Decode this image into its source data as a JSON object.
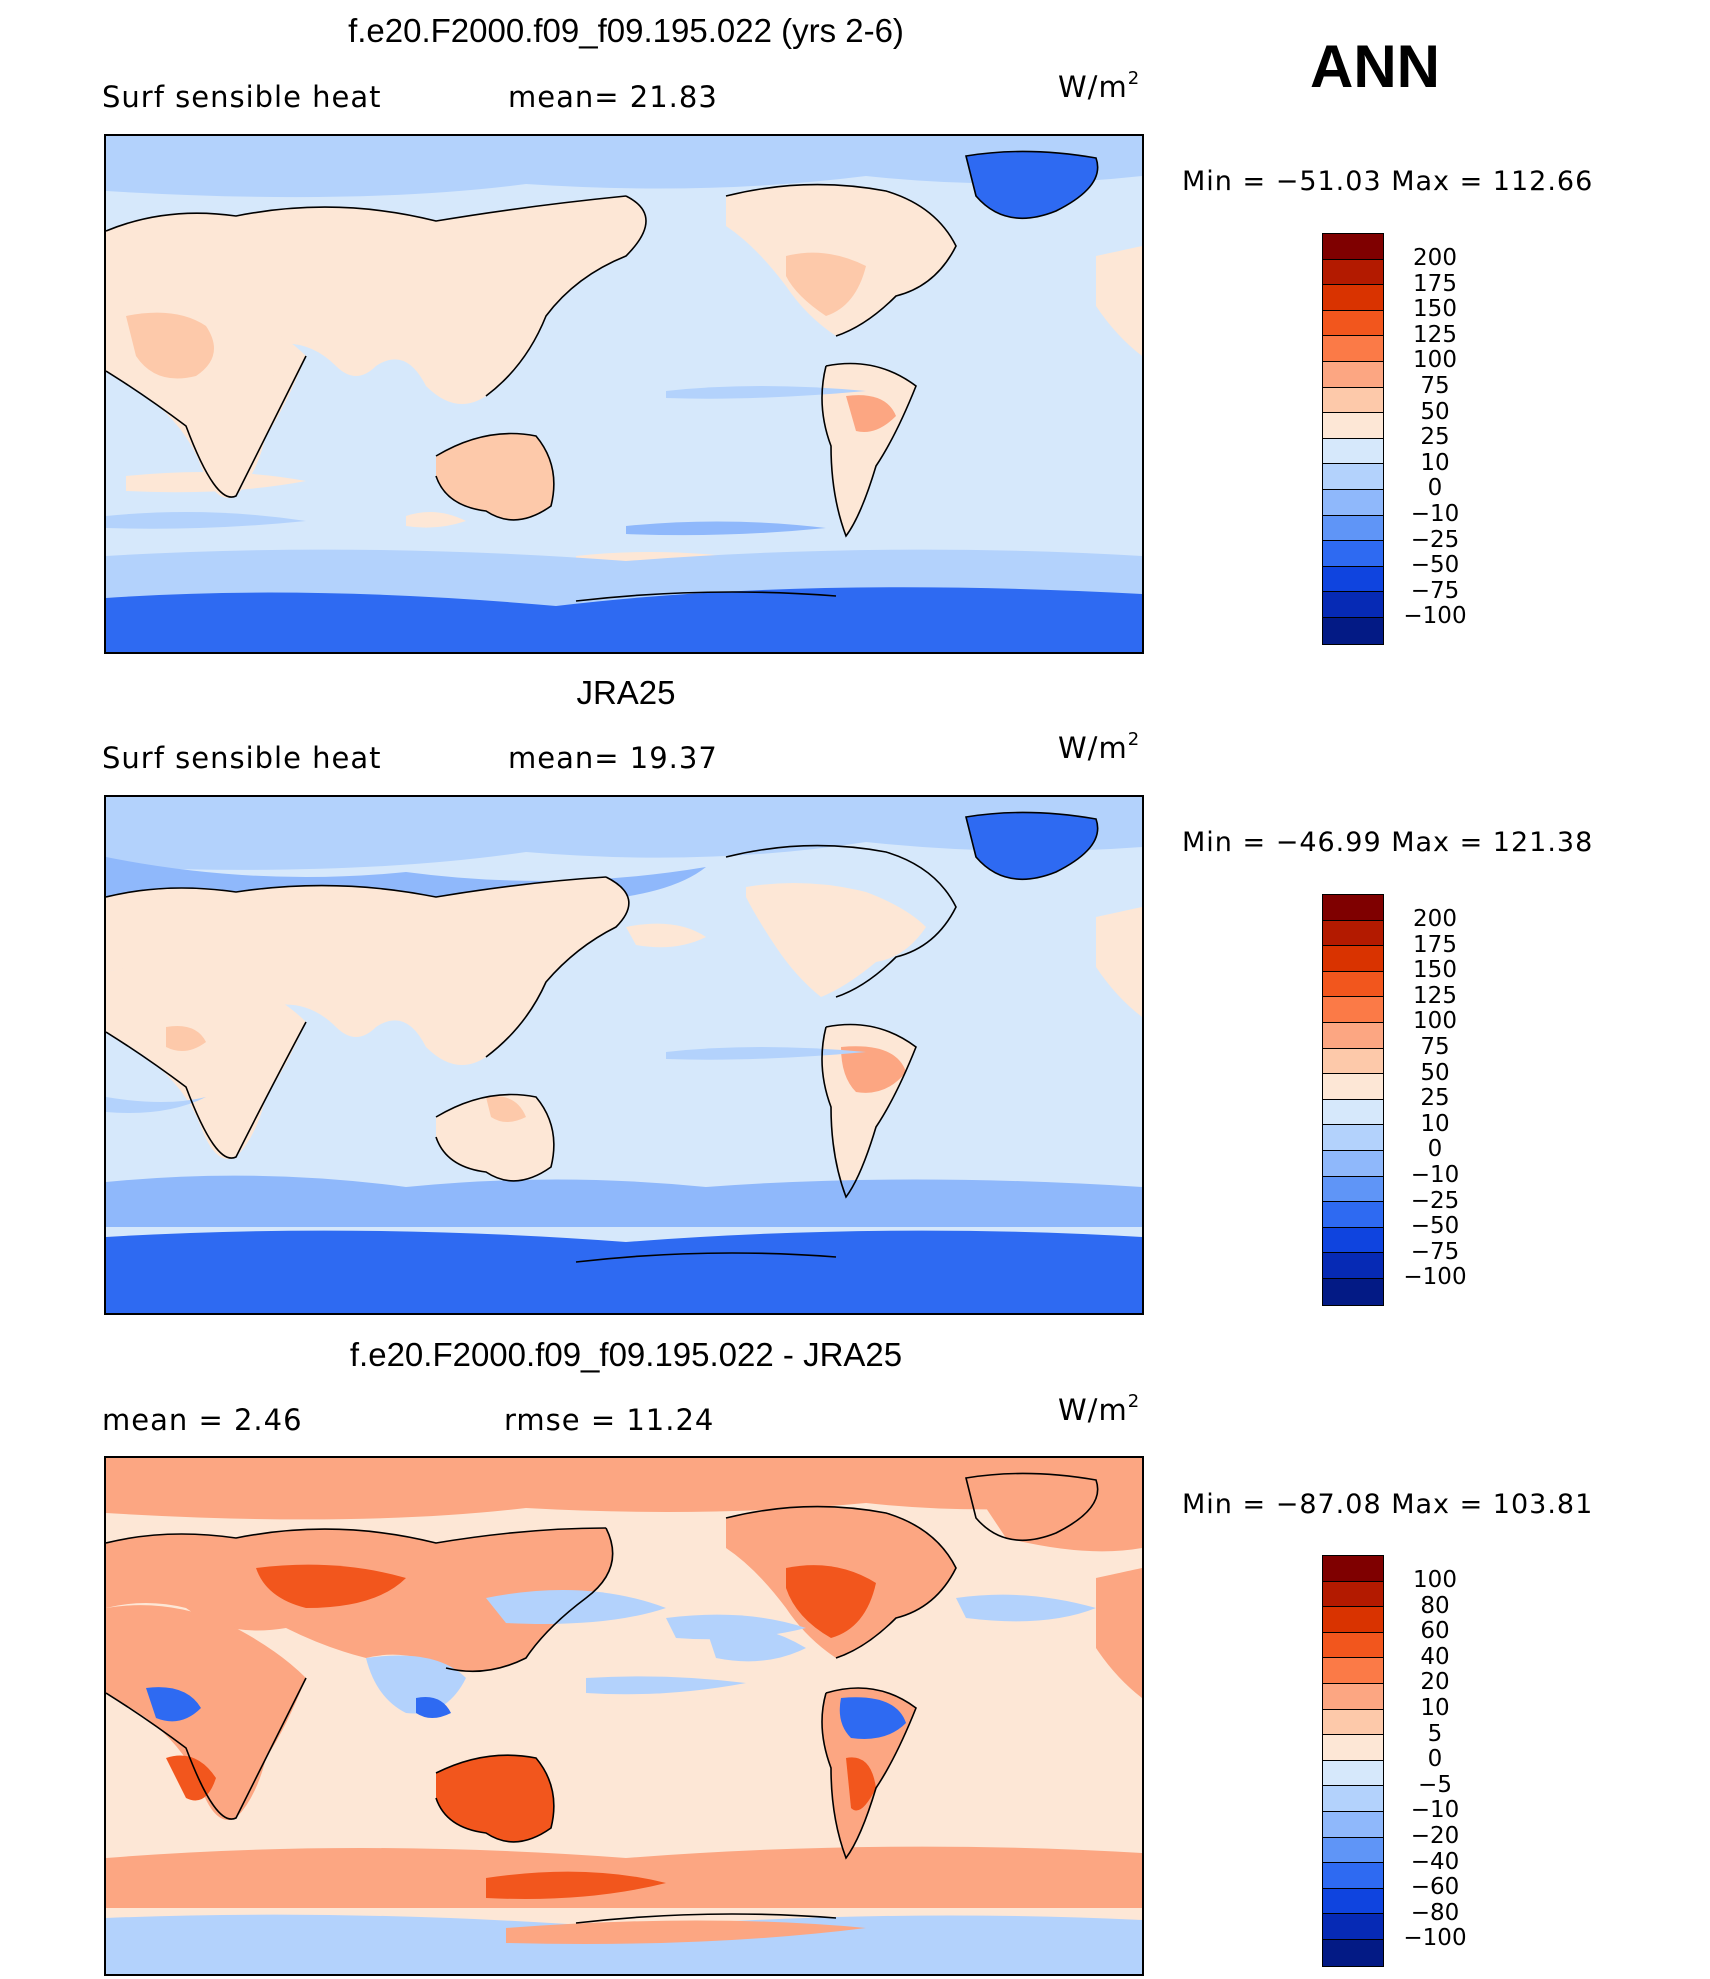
{
  "season": "ANN",
  "panels": [
    {
      "title": "f.e20.F2000.f09_f09.195.022 (yrs 2-6)",
      "left_label": "Surf  sensible  heat",
      "stat1": "mean=   21.83",
      "stat2": "",
      "units_base": "W/m",
      "units_exp": "2",
      "minmax": "Min  =  −51.03  Max  =  112.66",
      "levels": [
        "200",
        "175",
        "150",
        "125",
        "100",
        "75",
        "50",
        "25",
        "10",
        "0",
        "−10",
        "−25",
        "−50",
        "−75",
        "−100"
      ],
      "colors": [
        "#7f0000",
        "#b31a00",
        "#d93300",
        "#f2561d",
        "#fb7a47",
        "#fca682",
        "#fdc9aa",
        "#fde7d6",
        "#d6e8fb",
        "#b3d2fc",
        "#8fb8fb",
        "#5f95f7",
        "#2e6af2",
        "#0f44df",
        "#062ab5",
        "#031a85"
      ]
    },
    {
      "title": "JRA25",
      "left_label": "Surf  sensible  heat",
      "stat1": "mean=   19.37",
      "stat2": "",
      "units_base": "W/m",
      "units_exp": "2",
      "minmax": "Min  =  −46.99  Max  =  121.38",
      "levels": [
        "200",
        "175",
        "150",
        "125",
        "100",
        "75",
        "50",
        "25",
        "10",
        "0",
        "−10",
        "−25",
        "−50",
        "−75",
        "−100"
      ],
      "colors": [
        "#7f0000",
        "#b31a00",
        "#d93300",
        "#f2561d",
        "#fb7a47",
        "#fca682",
        "#fdc9aa",
        "#fde7d6",
        "#d6e8fb",
        "#b3d2fc",
        "#8fb8fb",
        "#5f95f7",
        "#2e6af2",
        "#0f44df",
        "#062ab5",
        "#031a85"
      ]
    },
    {
      "title": "f.e20.F2000.f09_f09.195.022 - JRA25",
      "left_label": "mean  =     2.46",
      "stat1": "rmse  =    11.24",
      "stat2": "",
      "units_base": "W/m",
      "units_exp": "2",
      "minmax": "Min  =  −87.08  Max  =  103.81",
      "levels": [
        "100",
        "80",
        "60",
        "40",
        "20",
        "10",
        "5",
        "0",
        "−5",
        "−10",
        "−20",
        "−40",
        "−60",
        "−80",
        "−100"
      ],
      "colors": [
        "#7f0000",
        "#b31a00",
        "#d93300",
        "#f2561d",
        "#fb7a47",
        "#fca682",
        "#fdc9aa",
        "#fde7d6",
        "#d6e8fb",
        "#b3d2fc",
        "#8fb8fb",
        "#5f95f7",
        "#2e6af2",
        "#0f44df",
        "#062ab5",
        "#031a85"
      ]
    }
  ],
  "map_colors": {
    "ocean": "#d6e8fb",
    "land": "#fde7d6",
    "land_warm": "#fdc9aa",
    "land_hot": "#fca682",
    "cool": "#b3d2fc",
    "cooler": "#8fb8fb",
    "cold": "#2e6af2",
    "diff_bg": "#fde7d6",
    "diff_warm": "#fca682",
    "diff_hot": "#f2561d",
    "diff_cool": "#b3d2fc",
    "diff_cold": "#2e6af2"
  }
}
